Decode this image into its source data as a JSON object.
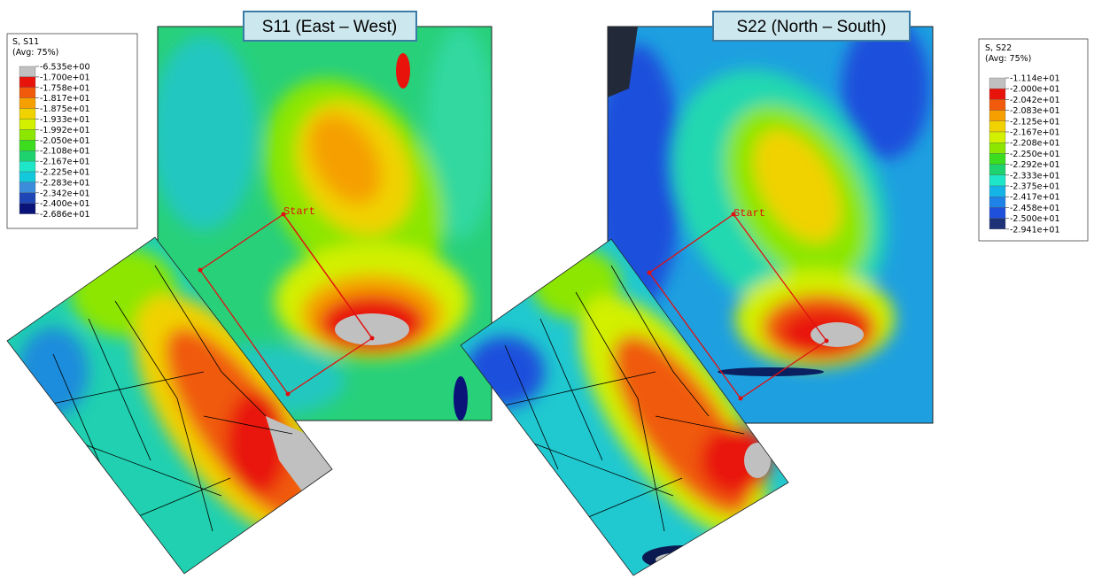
{
  "panels": [
    {
      "title": "S11 (East – West)",
      "legend": {
        "header": [
          "S, S11",
          "(Avg: 75%)"
        ],
        "labels": [
          "-6.535e+00",
          "-1.700e+01",
          "-1.758e+01",
          "-1.817e+01",
          "-1.875e+01",
          "-1.933e+01",
          "-1.992e+01",
          "-2.050e+01",
          "-2.108e+01",
          "-2.167e+01",
          "-2.225e+01",
          "-2.283e+01",
          "-2.342e+01",
          "-2.400e+01",
          "-2.686e+01"
        ],
        "colors": [
          "#c0c0c0",
          "#e8140c",
          "#f05a0a",
          "#f5a000",
          "#f0d200",
          "#d2f000",
          "#8ce600",
          "#3cdc1e",
          "#1ed26e",
          "#1ee6c8",
          "#14c8dc",
          "#3c8cdc",
          "#1e46b4",
          "#0a1478"
        ]
      },
      "marker": "Start"
    },
    {
      "title": "S22 (North – South)",
      "legend": {
        "header": [
          "S, S22",
          "(Avg: 75%)"
        ],
        "labels": [
          "-1.114e+01",
          "-2.000e+01",
          "-2.042e+01",
          "-2.083e+01",
          "-2.125e+01",
          "-2.167e+01",
          "-2.208e+01",
          "-2.250e+01",
          "-2.292e+01",
          "-2.333e+01",
          "-2.375e+01",
          "-2.417e+01",
          "-2.458e+01",
          "-2.500e+01",
          "-2.941e+01"
        ],
        "colors": [
          "#c0c0c0",
          "#e8140c",
          "#f05a0a",
          "#f5a000",
          "#f0d200",
          "#d2f000",
          "#8ce600",
          "#3cdc1e",
          "#1ed26e",
          "#1ee6c8",
          "#14b4e6",
          "#1e82e6",
          "#1e50dc",
          "#1e3278"
        ]
      },
      "marker": "Start"
    }
  ]
}
